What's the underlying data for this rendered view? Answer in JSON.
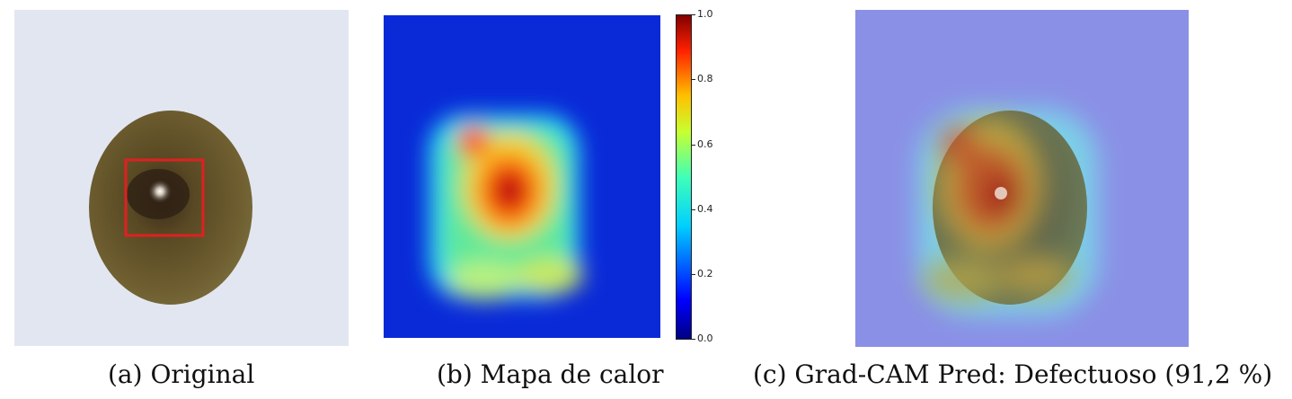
{
  "captions": {
    "a": "(a) Original",
    "b": "(b) Mapa de calor",
    "c": "(c) Grad-CAM Pred: Defectuoso (91,2 %)"
  },
  "colorbar": {
    "ticks": [
      "1.0",
      "0.8",
      "0.6",
      "0.4",
      "0.2",
      "0.0"
    ],
    "colormap": "jet",
    "range": [
      0.0,
      1.0
    ]
  },
  "colors": {
    "background_original": "#e2e6f1",
    "seed": "#6b5a2c",
    "bounding_box": "#e02020",
    "heatmap_low": "#0000b4",
    "heatmap_high": "#b40000"
  }
}
